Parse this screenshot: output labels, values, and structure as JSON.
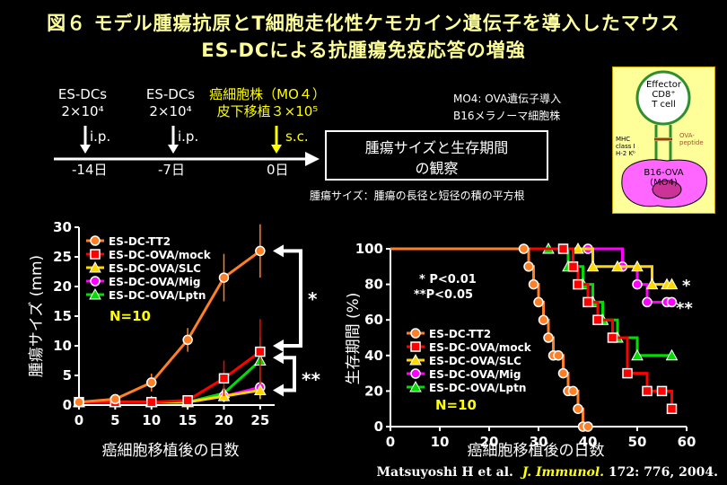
{
  "title": {
    "line1": "図６ モデル腫瘍抗原とT細胞走化性ケモカイン遺伝子を導入したマウス",
    "line2": "ES-DCによる抗腫瘍免疫応答の増強"
  },
  "protocol": {
    "dose1_name": "ES-DCs",
    "dose1_amount": "2×10⁴",
    "dose2_name": "ES-DCs",
    "dose2_amount": "2×10⁴",
    "tumor_name": "癌細胞株（MO４）",
    "tumor_amount": "皮下移植３×10⁵",
    "route_ip1": "i.p.",
    "route_ip2": "i.p.",
    "route_sc": "s.c.",
    "day1": "-14日",
    "day2": "-7日",
    "day3": "0日",
    "observe_line1": "腫瘍サイズと生存期間",
    "observe_line2": "の観察",
    "note1": "MO4: OVA遺伝子導入",
    "note2": "B16メラノーマ細胞株",
    "tumor_size_def": "腫瘍サイズ：腫瘍の長径と短径の積の平方根"
  },
  "diagram": {
    "effector_line1": "Effector",
    "effector_line2": "CD8⁺",
    "effector_line3": "T cell",
    "mhc_line1": "MHC",
    "mhc_line2": "class I",
    "mhc_line3": "H-2 Kᵇ",
    "ova_line1": "OVA-",
    "ova_line2": "peptide",
    "b16_line1": "B16-OVA",
    "b16_line2": "(MO4)"
  },
  "colors": {
    "tt2": "#ff7f27",
    "mock": "#ff0000",
    "slc": "#ffd700",
    "mig": "#ff00ff",
    "lptn": "#00dd00"
  },
  "citation": {
    "authors": "Matsuyoshi  H et al.",
    "journal": "J. Immunol.",
    "ref": "172: 776, 2004."
  },
  "chart_data": [
    {
      "type": "line",
      "xlabel": "癌細胞移植後の日数",
      "ylabel": "腫瘍サイズ (mm)",
      "xlim": [
        0,
        27
      ],
      "ylim": [
        0,
        30
      ],
      "xticks": [
        "0",
        "5",
        "10",
        "15",
        "20",
        "25"
      ],
      "yticks": [
        "0",
        "5",
        "10",
        "15",
        "20",
        "25",
        "30"
      ],
      "legend_position": "top-left",
      "annotation_n": "N=10",
      "sig1": "*",
      "sig2": "**",
      "series": [
        {
          "name": "ES-DC-TT2",
          "x": [
            0,
            5,
            10,
            15,
            20,
            25
          ],
          "values": [
            0.5,
            1.0,
            3.8,
            11.0,
            21.5,
            26.0
          ],
          "err": [
            0,
            0.6,
            1.5,
            2.0,
            4.0,
            4.5
          ]
        },
        {
          "name": "ES-DC-OVA/mock",
          "x": [
            0,
            5,
            10,
            15,
            20,
            25
          ],
          "values": [
            0.5,
            0.5,
            0.5,
            0.8,
            4.5,
            9.0
          ],
          "err": [
            0,
            0,
            0,
            0.5,
            3.0,
            5.5
          ]
        },
        {
          "name": "ES-DC-OVA/SLC",
          "x": [
            0,
            5,
            10,
            15,
            20,
            25
          ],
          "values": [
            0.5,
            0.5,
            0.5,
            0.5,
            1.5,
            2.5
          ],
          "err": [
            0,
            0,
            0,
            0,
            1.0,
            1.5
          ]
        },
        {
          "name": "ES-DC-OVA/Mig",
          "x": [
            0,
            5,
            10,
            15,
            20,
            25
          ],
          "values": [
            0.5,
            0.5,
            0.5,
            0.5,
            1.5,
            3.0
          ],
          "err": [
            0,
            0,
            0,
            0,
            1.0,
            1.5
          ]
        },
        {
          "name": "ES-DC-OVA/Lptn",
          "x": [
            0,
            5,
            10,
            15,
            20,
            25
          ],
          "values": [
            0.5,
            0.5,
            0.5,
            0.5,
            2.0,
            7.5
          ],
          "err": [
            0,
            0,
            0,
            0,
            1.2,
            4.0
          ]
        }
      ]
    },
    {
      "type": "line",
      "xlabel": "癌細胞移植後の日数",
      "ylabel": "生存期間 (%)",
      "xlim": [
        0,
        60
      ],
      "ylim": [
        0,
        100
      ],
      "xticks": [
        "0",
        "10",
        "20",
        "30",
        "40",
        "50",
        "60"
      ],
      "yticks": [
        "0",
        "20",
        "40",
        "60",
        "80",
        "100"
      ],
      "legend_position": "bottom-left",
      "annotation_n": "N=10",
      "p1": "* P<0.01",
      "p2": "**P<0.05",
      "sig_slc": "*",
      "sig_mig": "**",
      "series": [
        {
          "name": "ES-DC-TT2",
          "x": [
            0,
            27,
            28,
            29,
            30,
            31,
            32,
            33,
            34,
            35,
            36,
            37,
            38,
            39,
            40
          ],
          "values": [
            100,
            100,
            90,
            80,
            70,
            60,
            50,
            40,
            40,
            30,
            20,
            20,
            10,
            0,
            0
          ]
        },
        {
          "name": "ES-DC-OVA/mock",
          "x": [
            0,
            35,
            37,
            38,
            40,
            42,
            45,
            48,
            52,
            55,
            57
          ],
          "values": [
            100,
            100,
            90,
            80,
            70,
            60,
            50,
            30,
            20,
            20,
            10
          ]
        },
        {
          "name": "ES-DC-OVA/SLC",
          "x": [
            0,
            38,
            41,
            46,
            50,
            53,
            56,
            57
          ],
          "values": [
            100,
            100,
            90,
            90,
            90,
            80,
            80,
            80
          ]
        },
        {
          "name": "ES-DC-OVA/Mig",
          "x": [
            0,
            40,
            47,
            50,
            52,
            56,
            57
          ],
          "values": [
            100,
            100,
            90,
            80,
            70,
            70,
            70
          ]
        },
        {
          "name": "ES-DC-OVA/Lptn",
          "x": [
            0,
            32,
            36,
            39,
            41,
            43,
            46,
            50,
            57
          ],
          "values": [
            100,
            100,
            90,
            80,
            70,
            60,
            50,
            40,
            40
          ]
        }
      ]
    }
  ]
}
